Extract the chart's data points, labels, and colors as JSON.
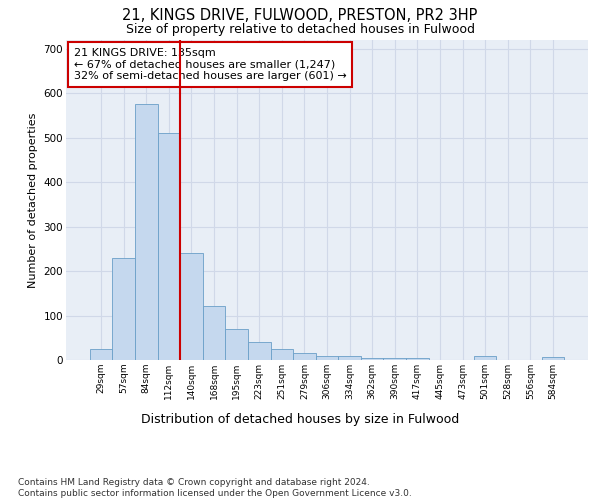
{
  "title1": "21, KINGS DRIVE, FULWOOD, PRESTON, PR2 3HP",
  "title2": "Size of property relative to detached houses in Fulwood",
  "xlabel": "Distribution of detached houses by size in Fulwood",
  "ylabel": "Number of detached properties",
  "footnote": "Contains HM Land Registry data © Crown copyright and database right 2024.\nContains public sector information licensed under the Open Government Licence v3.0.",
  "bin_labels": [
    "29sqm",
    "57sqm",
    "84sqm",
    "112sqm",
    "140sqm",
    "168sqm",
    "195sqm",
    "223sqm",
    "251sqm",
    "279sqm",
    "306sqm",
    "334sqm",
    "362sqm",
    "390sqm",
    "417sqm",
    "445sqm",
    "473sqm",
    "501sqm",
    "528sqm",
    "556sqm",
    "584sqm"
  ],
  "bar_values": [
    25,
    230,
    575,
    510,
    240,
    122,
    70,
    40,
    25,
    15,
    10,
    10,
    5,
    5,
    5,
    0,
    0,
    8,
    0,
    0,
    7
  ],
  "bar_color": "#c5d8ee",
  "bar_edge_color": "#6a9fc8",
  "grid_color": "#d0d8e8",
  "background_color": "#e8eef6",
  "annotation_text": "21 KINGS DRIVE: 135sqm\n← 67% of detached houses are smaller (1,247)\n32% of semi-detached houses are larger (601) →",
  "red_line_bin": 4,
  "red_color": "#cc0000",
  "ylim": [
    0,
    720
  ],
  "yticks": [
    0,
    100,
    200,
    300,
    400,
    500,
    600,
    700
  ],
  "title1_fontsize": 10.5,
  "title2_fontsize": 9,
  "annotation_fontsize": 8,
  "xlabel_fontsize": 9,
  "ylabel_fontsize": 8,
  "footnote_fontsize": 6.5
}
